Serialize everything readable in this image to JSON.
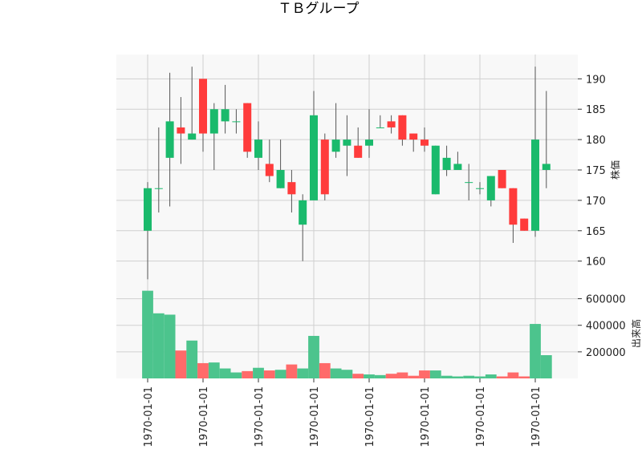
{
  "chart_data": {
    "type": "candlestick",
    "title": "ＴＢグループ",
    "y_label_price": "株価",
    "y_label_volume": "出来高",
    "x_tick_labels": [
      "1970-01-01",
      "1970-01-01",
      "1970-01-01",
      "1970-01-01",
      "1970-01-01",
      "1970-01-01",
      "1970-01-01",
      "1970-01-01"
    ],
    "price_ticks": [
      160,
      165,
      170,
      175,
      180,
      185,
      190
    ],
    "price_ylim": [
      156,
      194
    ],
    "volume_ticks": [
      200000,
      400000,
      600000
    ],
    "volume_tick_labels": [
      "200000",
      "400000",
      "600000"
    ],
    "volume_ylim": [
      0,
      700000
    ],
    "colors": {
      "up": "#1aba6c",
      "down": "#ff3b3b",
      "up_volume": "#4cc48d",
      "down_volume": "#ff6a6a",
      "wick": "#555555",
      "grid": "#d0d0d0",
      "panel_bg": "#f8f8f8"
    },
    "candles": [
      {
        "open": 165,
        "high": 173,
        "low": 157,
        "close": 172,
        "volume": 660000
      },
      {
        "open": 172,
        "high": 182,
        "low": 168,
        "close": 172,
        "volume": 490000
      },
      {
        "open": 177,
        "high": 191,
        "low": 169,
        "close": 183,
        "volume": 480000
      },
      {
        "open": 182,
        "high": 187,
        "low": 176,
        "close": 181,
        "volume": 210000
      },
      {
        "open": 180,
        "high": 192,
        "low": 180,
        "close": 181,
        "volume": 285000
      },
      {
        "open": 190,
        "high": 190,
        "low": 178,
        "close": 181,
        "volume": 115000
      },
      {
        "open": 181,
        "high": 186,
        "low": 175,
        "close": 185,
        "volume": 120000
      },
      {
        "open": 183,
        "high": 189,
        "low": 181,
        "close": 185,
        "volume": 75000
      },
      {
        "open": 183,
        "high": 185,
        "low": 181,
        "close": 183,
        "volume": 45000
      },
      {
        "open": 186,
        "high": 186,
        "low": 177,
        "close": 178,
        "volume": 55000
      },
      {
        "open": 177,
        "high": 183,
        "low": 175,
        "close": 180,
        "volume": 80000
      },
      {
        "open": 176,
        "high": 180,
        "low": 173,
        "close": 174,
        "volume": 60000
      },
      {
        "open": 172,
        "high": 180,
        "low": 172,
        "close": 175,
        "volume": 65000
      },
      {
        "open": 173,
        "high": 175,
        "low": 168,
        "close": 171,
        "volume": 105000
      },
      {
        "open": 166,
        "high": 171,
        "low": 160,
        "close": 170,
        "volume": 75000
      },
      {
        "open": 170,
        "high": 188,
        "low": 170,
        "close": 184,
        "volume": 320000
      },
      {
        "open": 180,
        "high": 181,
        "low": 170,
        "close": 171,
        "volume": 115000
      },
      {
        "open": 178,
        "high": 186,
        "low": 177,
        "close": 180,
        "volume": 75000
      },
      {
        "open": 179,
        "high": 184,
        "low": 174,
        "close": 180,
        "volume": 65000
      },
      {
        "open": 179,
        "high": 182,
        "low": 177,
        "close": 177,
        "volume": 35000
      },
      {
        "open": 179,
        "high": 185,
        "low": 177,
        "close": 180,
        "volume": 30000
      },
      {
        "open": 182,
        "high": 184,
        "low": 182,
        "close": 182,
        "volume": 25000
      },
      {
        "open": 183,
        "high": 184,
        "low": 181,
        "close": 182,
        "volume": 35000
      },
      {
        "open": 184,
        "high": 184,
        "low": 179,
        "close": 180,
        "volume": 45000
      },
      {
        "open": 181,
        "high": 181,
        "low": 178,
        "close": 180,
        "volume": 20000
      },
      {
        "open": 180,
        "high": 182,
        "low": 178,
        "close": 179,
        "volume": 60000
      },
      {
        "open": 171,
        "high": 179,
        "low": 171,
        "close": 179,
        "volume": 60000
      },
      {
        "open": 175,
        "high": 179,
        "low": 174,
        "close": 177,
        "volume": 20000
      },
      {
        "open": 175,
        "high": 178,
        "low": 175,
        "close": 176,
        "volume": 15000
      },
      {
        "open": 173,
        "high": 176,
        "low": 170,
        "close": 173,
        "volume": 20000
      },
      {
        "open": 172,
        "high": 173,
        "low": 171,
        "close": 172,
        "volume": 15000
      },
      {
        "open": 170,
        "high": 174,
        "low": 169,
        "close": 174,
        "volume": 30000
      },
      {
        "open": 175,
        "high": 175,
        "low": 172,
        "close": 172,
        "volume": 15000
      },
      {
        "open": 172,
        "high": 172,
        "low": 163,
        "close": 166,
        "volume": 45000
      },
      {
        "open": 167,
        "high": 167,
        "low": 165,
        "close": 165,
        "volume": 15000
      },
      {
        "open": 165,
        "high": 192,
        "low": 164,
        "close": 180,
        "volume": 410000
      },
      {
        "open": 175,
        "high": 188,
        "low": 172,
        "close": 176,
        "volume": 175000
      }
    ]
  }
}
